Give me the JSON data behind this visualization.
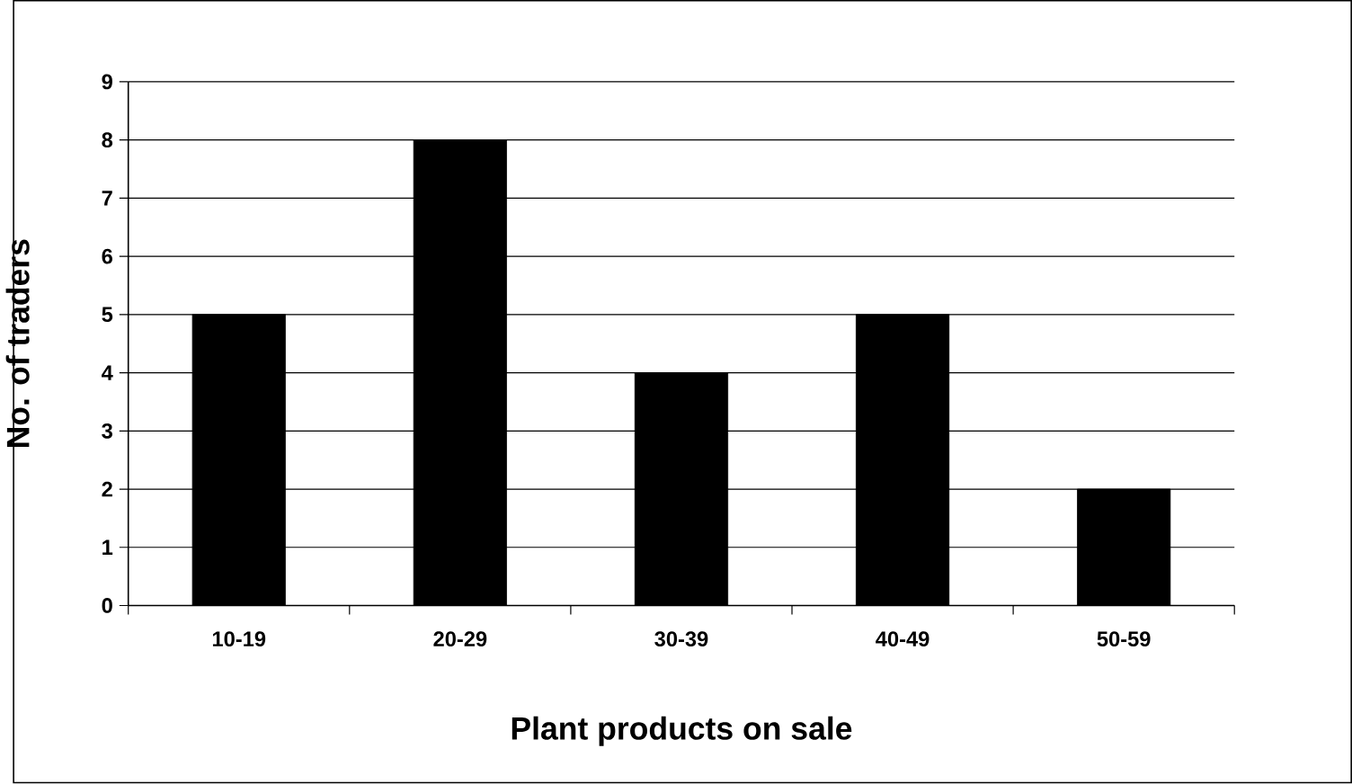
{
  "chart_data": {
    "type": "bar",
    "xlabel": "Plant products on sale",
    "ylabel": "No. of traders",
    "categories": [
      "10-19",
      "20-29",
      "30-39",
      "40-49",
      "50-59"
    ],
    "values": [
      5,
      8,
      4,
      5,
      2
    ],
    "color": "#000000",
    "ylim": [
      0,
      9
    ],
    "yticks": [
      0,
      1,
      2,
      3,
      4,
      5,
      6,
      7,
      8,
      9
    ],
    "grid": "y"
  }
}
